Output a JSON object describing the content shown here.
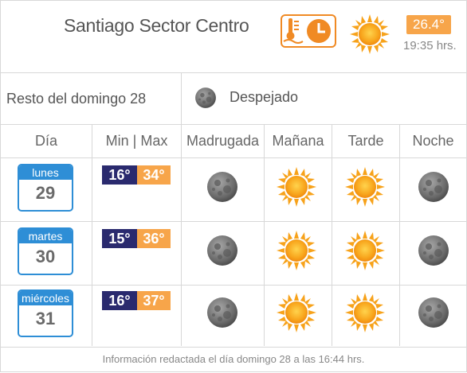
{
  "header": {
    "location": "Santiago Sector Centro",
    "current_temp": "26.4°",
    "current_time": "19:35 hrs."
  },
  "rest": {
    "label": "Resto del domingo 28",
    "condition": "Despejado"
  },
  "columns": [
    "Día",
    "Min | Max",
    "Madrugada",
    "Mañana",
    "Tarde",
    "Noche"
  ],
  "days": [
    {
      "weekday": "lunes",
      "date": "29",
      "min": "16°",
      "max": "34°",
      "madrugada": "moon-icon",
      "manana": "sun-icon",
      "tarde": "sun-icon",
      "noche": "moon-icon"
    },
    {
      "weekday": "martes",
      "date": "30",
      "min": "15°",
      "max": "36°",
      "madrugada": "moon-icon",
      "manana": "sun-icon",
      "tarde": "sun-icon",
      "noche": "moon-icon"
    },
    {
      "weekday": "miércoles",
      "date": "31",
      "min": "16°",
      "max": "37°",
      "madrugada": "moon-icon",
      "manana": "sun-icon",
      "tarde": "sun-icon",
      "noche": "moon-icon"
    }
  ],
  "footer": "Información redactada el día domingo 28 a las 16:44 hrs.",
  "colors": {
    "accent_orange": "#f7a54a",
    "min_temp_bg": "#2a2a6e",
    "calendar_blue": "#2e8ed6",
    "sun": "#f5a623",
    "moon": "#6f6f6f"
  }
}
